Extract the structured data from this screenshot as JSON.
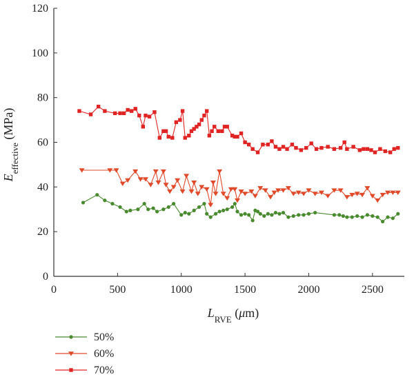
{
  "chart_data": {
    "type": "line",
    "xlabel_main": "L",
    "xlabel_sub": "RVE",
    "xlabel_unit_open": " (",
    "xlabel_unit_mu": "μ",
    "xlabel_unit_rest": "m)",
    "ylabel_main": "E",
    "ylabel_sub": "effective",
    "ylabel_unit": " (MPa)",
    "xlim": [
      0,
      2750
    ],
    "ylim": [
      0,
      120
    ],
    "xticks": [
      0,
      500,
      1000,
      1500,
      2000,
      2500
    ],
    "yticks": [
      0,
      20,
      40,
      60,
      80,
      100,
      120
    ],
    "grid": false,
    "legend_position": "bottom-left",
    "series": [
      {
        "name": "50%",
        "color": "#4a8a2e",
        "marker": "circle",
        "x": [
          230,
          340,
          400,
          460,
          520,
          570,
          600,
          660,
          710,
          740,
          780,
          810,
          860,
          900,
          940,
          1000,
          1030,
          1060,
          1100,
          1140,
          1180,
          1200,
          1230,
          1270,
          1300,
          1330,
          1360,
          1400,
          1420,
          1440,
          1470,
          1500,
          1530,
          1560,
          1580,
          1600,
          1620,
          1650,
          1680,
          1710,
          1740,
          1770,
          1800,
          1840,
          1880,
          1920,
          1960,
          2000,
          2050,
          2200,
          2240,
          2270,
          2300,
          2340,
          2380,
          2420,
          2460,
          2500,
          2540,
          2580,
          2620,
          2660,
          2700
        ],
        "values": [
          33,
          36.5,
          34,
          32.5,
          31,
          29,
          29.5,
          30,
          32.5,
          30,
          30.5,
          29,
          30,
          31,
          32.5,
          27.5,
          28.5,
          28,
          29.5,
          31,
          32.5,
          28,
          26.5,
          28,
          29,
          29.5,
          30,
          31,
          32.5,
          29,
          27.5,
          28,
          27.5,
          25,
          29.5,
          29,
          28,
          27,
          28,
          27.5,
          28.5,
          28,
          28.5,
          26.5,
          27,
          27.5,
          27.5,
          28,
          28.5,
          27.5,
          27.5,
          27,
          26.5,
          26.5,
          27,
          26.5,
          27.5,
          27,
          26.5,
          24.5,
          26.5,
          26,
          28
        ]
      },
      {
        "name": "60%",
        "color": "#e04a2a",
        "marker": "triangle-down",
        "x": [
          220,
          440,
          490,
          540,
          580,
          640,
          680,
          720,
          760,
          800,
          820,
          860,
          880,
          910,
          940,
          970,
          1010,
          1040,
          1080,
          1100,
          1130,
          1160,
          1200,
          1230,
          1250,
          1270,
          1300,
          1330,
          1360,
          1390,
          1420,
          1440,
          1470,
          1500,
          1550,
          1580,
          1620,
          1660,
          1700,
          1730,
          1760,
          1800,
          1840,
          1880,
          1920,
          1960,
          2000,
          2050,
          2100,
          2150,
          2200,
          2250,
          2300,
          2340,
          2380,
          2420,
          2460,
          2500,
          2540,
          2580,
          2620,
          2660,
          2700
        ],
        "values": [
          47.5,
          47.5,
          47.5,
          41.5,
          43,
          47,
          43.5,
          43.5,
          41,
          47,
          42,
          47,
          41,
          38,
          40,
          43,
          38,
          45,
          38,
          42,
          37,
          40,
          39,
          32,
          42,
          37,
          47,
          37,
          35,
          39,
          39,
          34,
          38,
          37,
          38,
          36,
          39.5,
          38.5,
          35.5,
          37.5,
          38.5,
          38.5,
          39.5,
          37,
          37.5,
          37,
          38.5,
          37,
          37.5,
          36,
          38.5,
          38.5,
          35.5,
          36.5,
          37,
          36.5,
          39.5,
          36,
          34,
          36.5,
          37.5,
          37.5,
          37.5
        ]
      },
      {
        "name": "70%",
        "color": "#e02424",
        "marker": "square",
        "x": [
          200,
          290,
          350,
          400,
          480,
          520,
          550,
          580,
          610,
          640,
          670,
          700,
          720,
          750,
          790,
          830,
          860,
          880,
          900,
          930,
          960,
          990,
          1010,
          1030,
          1060,
          1080,
          1100,
          1120,
          1140,
          1160,
          1180,
          1200,
          1220,
          1240,
          1260,
          1290,
          1320,
          1340,
          1360,
          1400,
          1420,
          1440,
          1470,
          1500,
          1530,
          1560,
          1600,
          1640,
          1680,
          1710,
          1740,
          1770,
          1800,
          1830,
          1870,
          1900,
          1940,
          1980,
          2020,
          2060,
          2100,
          2150,
          2200,
          2250,
          2280,
          2300,
          2350,
          2400,
          2430,
          2460,
          2490,
          2520,
          2560,
          2600,
          2640,
          2670,
          2700
        ],
        "values": [
          74,
          72.5,
          76,
          74,
          73,
          73,
          73,
          74.5,
          74,
          75,
          72,
          67,
          72,
          71.5,
          73.5,
          62,
          65,
          65,
          62.5,
          62,
          69,
          70,
          74,
          62,
          63,
          65,
          66,
          67,
          68,
          70,
          72,
          74,
          63,
          65,
          67,
          65,
          65,
          67,
          67,
          63,
          62.5,
          62.5,
          64,
          60,
          59,
          57,
          55.5,
          59,
          59,
          60.5,
          58,
          57,
          58,
          57,
          59,
          57.5,
          56.5,
          57.5,
          59.5,
          57,
          57.5,
          58,
          57,
          57.5,
          60,
          57,
          58,
          56.5,
          57,
          57,
          56.5,
          55.5,
          57,
          56,
          55.5,
          57,
          57.5
        ]
      }
    ]
  }
}
